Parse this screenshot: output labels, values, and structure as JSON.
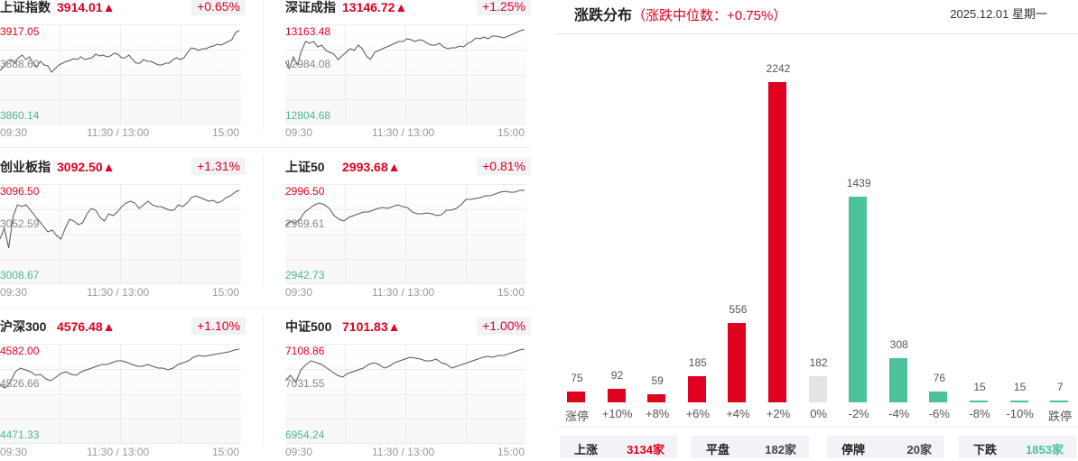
{
  "colors": {
    "up": "#e0001f",
    "down": "#4cc19c",
    "flat": "#e4e4e4",
    "neutral": "#888888"
  },
  "indices": [
    {
      "name": "上证指数",
      "price": "3914.01▲",
      "pct": "+0.65%",
      "hi": "3917.05",
      "mid": "3888.60",
      "lo": "3860.14",
      "times": [
        "09:30",
        "11:30 / 13:00",
        "15:00"
      ],
      "series": [
        50,
        46,
        40,
        38,
        42,
        36,
        33,
        38,
        35,
        42,
        46,
        40,
        44,
        45,
        52,
        48,
        44,
        42,
        40,
        39,
        37,
        38,
        35,
        38,
        37,
        36,
        32,
        34,
        33,
        35,
        34,
        31,
        32,
        36,
        36,
        33,
        38,
        42,
        42,
        38,
        40,
        40,
        42,
        44,
        44,
        42,
        42,
        38,
        36,
        38,
        36,
        30,
        25,
        26,
        28,
        26,
        26,
        24,
        23,
        21,
        22,
        20,
        18,
        16,
        8,
        6
      ]
    },
    {
      "name": "深证成指",
      "price": "13146.72▲",
      "pct": "+1.25%",
      "hi": "13163.48",
      "mid": "12984.08",
      "lo": "12804.68",
      "times": [
        "09:30",
        "11:30 / 13:00",
        "15:00"
      ],
      "series": [
        40,
        48,
        35,
        44,
        28,
        18,
        20,
        18,
        24,
        22,
        28,
        30,
        32,
        38,
        34,
        30,
        26,
        28,
        22,
        26,
        34,
        38,
        30,
        28,
        26,
        24,
        22,
        20,
        18,
        18,
        15,
        16,
        18,
        16,
        17,
        20,
        22,
        22,
        20,
        24,
        26,
        25,
        25,
        23,
        24,
        20,
        18,
        14,
        15,
        13,
        15,
        12,
        12,
        13,
        14,
        12,
        10,
        8,
        6,
        5
      ]
    },
    {
      "name": "创业板指",
      "price": "3092.50▲",
      "pct": "+1.31%",
      "hi": "3096.50",
      "mid": "3052.59",
      "lo": "3008.67",
      "times": [
        "09:30",
        "11:30 / 13:00",
        "15:00"
      ],
      "series": [
        60,
        48,
        70,
        35,
        22,
        24,
        22,
        28,
        34,
        40,
        46,
        52,
        50,
        56,
        60,
        48,
        38,
        40,
        44,
        42,
        32,
        26,
        28,
        36,
        40,
        32,
        34,
        30,
        24,
        20,
        18,
        20,
        26,
        22,
        18,
        22,
        24,
        24,
        26,
        28,
        28,
        22,
        24,
        20,
        14,
        12,
        14,
        16,
        18,
        17,
        20,
        18,
        14,
        12,
        8,
        6
      ]
    },
    {
      "name": "上证50",
      "price": "2993.68▲",
      "pct": "+0.81%",
      "hi": "2996.50",
      "mid": "2969.61",
      "lo": "2942.73",
      "times": [
        "09:30",
        "11:30 / 13:00",
        "15:00"
      ],
      "series": [
        45,
        40,
        42,
        38,
        30,
        26,
        22,
        20,
        22,
        26,
        34,
        38,
        40,
        36,
        34,
        32,
        30,
        30,
        28,
        26,
        25,
        26,
        24,
        22,
        24,
        25,
        30,
        32,
        32,
        31,
        32,
        34,
        33,
        28,
        28,
        26,
        22,
        16,
        16,
        15,
        14,
        12,
        12,
        10,
        8,
        7,
        8,
        8,
        6,
        6
      ]
    },
    {
      "name": "沪深300",
      "price": "4576.48▲",
      "pct": "+1.10%",
      "hi": "4582.00",
      "mid": "4526.66",
      "lo": "4471.33",
      "times": [
        "09:30",
        "11:30 / 13:00",
        "15:00"
      ],
      "series": [
        45,
        48,
        42,
        30,
        26,
        28,
        30,
        34,
        33,
        38,
        40,
        36,
        32,
        30,
        33,
        34,
        30,
        28,
        26,
        24,
        22,
        22,
        20,
        18,
        18,
        20,
        22,
        24,
        24,
        22,
        24,
        26,
        26,
        28,
        26,
        22,
        20,
        18,
        14,
        12,
        13,
        12,
        11,
        10,
        9,
        8,
        6,
        5
      ]
    },
    {
      "name": "中证500",
      "price": "7101.83▲",
      "pct": "+1.00%",
      "hi": "7108.86",
      "mid": "7031.55",
      "lo": "6954.24",
      "times": [
        "09:30",
        "11:30 / 13:00",
        "15:00"
      ],
      "series": [
        40,
        34,
        42,
        28,
        22,
        18,
        20,
        22,
        26,
        30,
        34,
        36,
        32,
        30,
        28,
        26,
        22,
        20,
        22,
        26,
        24,
        20,
        18,
        16,
        14,
        15,
        16,
        18,
        18,
        16,
        20,
        22,
        26,
        24,
        22,
        20,
        18,
        16,
        14,
        13,
        14,
        12,
        12,
        10,
        8,
        6,
        5
      ]
    }
  ],
  "distribution": {
    "title": "涨跌分布",
    "subtitle": "（涨跌中位数：+0.75%）",
    "date": "2025.12.01 星期一",
    "summary": [
      {
        "label": "上涨",
        "value": "3134家",
        "color": "#e0001f"
      },
      {
        "label": "平盘",
        "value": "182家",
        "color": "#444444"
      },
      {
        "label": "停牌",
        "value": "20家",
        "color": "#444444"
      },
      {
        "label": "下跌",
        "value": "1853家",
        "color": "#4cc19c"
      }
    ]
  },
  "chart_data": {
    "type": "bar",
    "title": "涨跌分布（涨跌中位数：+0.75%）",
    "categories": [
      "涨停",
      "+10%",
      "+8%",
      "+6%",
      "+4%",
      "+2%",
      "0%",
      "-2%",
      "-4%",
      "-6%",
      "-8%",
      "-10%",
      "跌停"
    ],
    "values": [
      75,
      92,
      59,
      185,
      556,
      2242,
      182,
      1439,
      308,
      76,
      15,
      15,
      7
    ],
    "colors": [
      "up",
      "up",
      "up",
      "up",
      "up",
      "up",
      "flat",
      "down",
      "down",
      "down",
      "down",
      "down",
      "down"
    ],
    "xlabel": "",
    "ylabel": "",
    "ylim": [
      0,
      2242
    ],
    "grid": false,
    "legend": "none"
  }
}
